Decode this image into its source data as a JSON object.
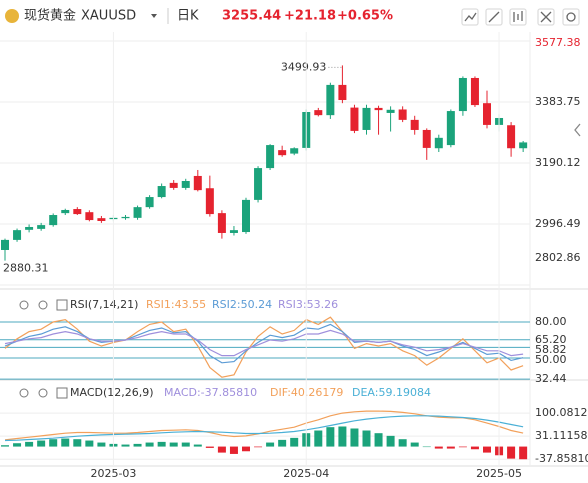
{
  "header": {
    "title": "现货黄金",
    "symbol": "XAUUSD",
    "period": "日K",
    "price": "3255.44",
    "change": "+21.18",
    "change_pct": "+0.65%"
  },
  "chart_data": [
    {
      "type": "candlestick",
      "up_color": "#1ba37b",
      "down_color": "#e5232f",
      "open": [
        2914,
        2946,
        2978,
        2981,
        2993,
        3031,
        3044,
        3034,
        3015,
        3012,
        3015,
        3016,
        3050,
        3082,
        3127,
        3111,
        3149,
        3110,
        3031,
        2968,
        2971,
        3073,
        3174,
        3231,
        3220,
        3238,
        3358,
        3342,
        3438,
        3366,
        3295,
        3365,
        3349,
        3360,
        3327,
        3295,
        3237,
        3247,
        3355,
        3460,
        3380,
        3311,
        3310,
        3237
      ],
      "high": [
        2950,
        2982,
        2995,
        3000,
        3030,
        3045,
        3050,
        3040,
        3022,
        3025,
        3025,
        3055,
        3088,
        3125,
        3136,
        3140,
        3168,
        3150,
        3040,
        2990,
        3080,
        3180,
        3250,
        3245,
        3240,
        3360,
        3365,
        3445,
        3499.93,
        3375,
        3375,
        3372,
        3370,
        3370,
        3340,
        3300,
        3280,
        3360,
        3465,
        3465,
        3420,
        3345,
        3320,
        3260
      ],
      "low": [
        2880.31,
        2940,
        2970,
        2975,
        2988,
        3025,
        3025,
        3005,
        3000,
        3005,
        3010,
        3010,
        3045,
        3078,
        3105,
        3105,
        3100,
        3020,
        2950,
        2960,
        2965,
        3065,
        3168,
        3210,
        3215,
        3230,
        3338,
        3330,
        3380,
        3285,
        3280,
        3280,
        3290,
        3320,
        3280,
        3200,
        3225,
        3240,
        3340,
        3368,
        3300,
        3290,
        3210,
        3225
      ],
      "close": [
        2946,
        2977,
        2987,
        2993,
        3025,
        3041,
        3028,
        3009,
        3006,
        3016,
        3019,
        3050,
        3082,
        3117,
        3111,
        3133,
        3104,
        3028,
        2968,
        2977,
        3073,
        3174,
        3247,
        3215,
        3237,
        3352,
        3342,
        3438,
        3390,
        3292,
        3365,
        3358,
        3359,
        3327,
        3295,
        3238,
        3270,
        3355,
        3460,
        3374,
        3311,
        3333,
        3237,
        3255.44
      ],
      "ylim": [
        2802.86,
        3577.38
      ],
      "yticks": [
        3577.38,
        3383.75,
        3190.12,
        2996.49,
        2802.86
      ]
    },
    {
      "type": "line",
      "title": "RSI(7,14,21)",
      "series": [
        {
          "name": "RSI1:43.55",
          "color": "#f2a05a",
          "values": [
            58,
            66,
            72,
            74,
            80,
            82,
            74,
            64,
            60,
            63,
            65,
            72,
            78,
            80,
            72,
            74,
            60,
            42,
            34,
            36,
            55,
            68,
            76,
            70,
            73,
            82,
            78,
            84,
            72,
            58,
            62,
            60,
            62,
            56,
            52,
            44,
            50,
            58,
            66,
            56,
            46,
            50,
            40,
            43.55
          ]
        },
        {
          "name": "RSI2:50.24",
          "color": "#5b9bd5",
          "values": [
            60,
            64,
            68,
            70,
            74,
            76,
            72,
            66,
            63,
            64,
            65,
            69,
            73,
            75,
            71,
            72,
            64,
            52,
            46,
            47,
            56,
            63,
            69,
            67,
            69,
            75,
            74,
            78,
            72,
            63,
            64,
            63,
            64,
            60,
            57,
            52,
            55,
            59,
            63,
            58,
            53,
            54,
            48,
            50.24
          ]
        },
        {
          "name": "RSI3:53.26",
          "color": "#9f8fdc",
          "values": [
            62,
            64,
            66,
            67,
            70,
            72,
            70,
            66,
            64,
            64,
            65,
            67,
            70,
            72,
            70,
            70,
            65,
            57,
            52,
            52,
            57,
            61,
            65,
            64,
            66,
            70,
            70,
            73,
            70,
            64,
            64,
            63,
            64,
            61,
            59,
            56,
            57,
            59,
            62,
            59,
            56,
            56,
            52,
            53.26
          ]
        }
      ],
      "ylim": [
        28,
        102
      ],
      "yticks": [
        {
          "value": 80,
          "label": "80.00"
        },
        {
          "value": 65.2,
          "label": "65.20"
        },
        58.82,
        {
          "value": 50,
          "label": "50.00"
        },
        32.44
      ],
      "guide_color": "#4ca9bf"
    },
    {
      "type": "macd",
      "title": "MACD(12,26,9)",
      "hist": {
        "name": "MACD:-37.85810",
        "up_color": "#1ba37b",
        "down_color": "#e5232f",
        "values": [
          4,
          10,
          14,
          18,
          22,
          24,
          22,
          18,
          12,
          8,
          6,
          8,
          12,
          14,
          12,
          12,
          6,
          -4,
          -18,
          -22,
          -14,
          -2,
          12,
          20,
          26,
          40,
          48,
          58,
          60,
          54,
          48,
          40,
          32,
          22,
          12,
          0,
          -6,
          -6,
          -2,
          -8,
          -18,
          -26,
          -36,
          -37.8581
        ]
      },
      "series": [
        {
          "name": "DIF:40.26179",
          "color": "#f2a05a",
          "values": [
            20,
            24,
            28,
            32,
            36,
            40,
            42,
            42,
            41,
            40,
            40,
            42,
            45,
            48,
            49,
            50,
            48,
            42,
            34,
            30,
            32,
            38,
            46,
            52,
            58,
            70,
            80,
            92,
            100,
            104,
            106,
            106,
            105,
            102,
            98,
            92,
            88,
            86,
            86,
            80,
            70,
            60,
            48,
            40.26179
          ]
        },
        {
          "name": "DEA:59.19084",
          "color": "#4ab0d6",
          "values": [
            18,
            19,
            21,
            23,
            25,
            28,
            31,
            33,
            35,
            36,
            37,
            38,
            39,
            41,
            43,
            44,
            45,
            44,
            43,
            41,
            39,
            39,
            40,
            42,
            45,
            50,
            56,
            63,
            70,
            77,
            82,
            86,
            89,
            91,
            92,
            92,
            91,
            89,
            87,
            84,
            79,
            73,
            66,
            59.19
          ]
        }
      ],
      "ylim": [
        -70,
        175
      ],
      "yticks": [
        100.08126,
        31.11158,
        {
          "value": -37.8581,
          "label": "-37.85810"
        }
      ],
      "xticks": [
        {
          "value": 9,
          "label": "2025-03"
        },
        {
          "value": 25,
          "label": "2025-04"
        },
        {
          "value": 41,
          "label": "2025-05"
        }
      ]
    }
  ]
}
